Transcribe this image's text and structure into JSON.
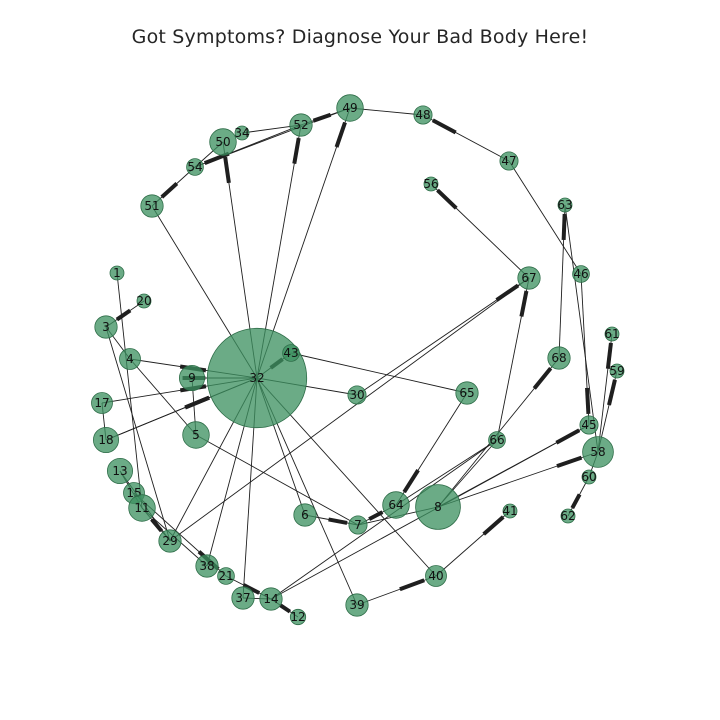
{
  "title": "Got Symptoms? Diagnose Your Bad Body Here!",
  "node_color": "#3c9160",
  "edge_color": "#1f1f1f",
  "nodes": [
    {
      "id": "1",
      "size": 1
    },
    {
      "id": "20",
      "size": 1
    },
    {
      "id": "3",
      "size": 1.6
    },
    {
      "id": "4",
      "size": 1.5
    },
    {
      "id": "9",
      "size": 1.8
    },
    {
      "id": "17",
      "size": 1.5
    },
    {
      "id": "18",
      "size": 1.8
    },
    {
      "id": "5",
      "size": 1.9
    },
    {
      "id": "13",
      "size": 1.8
    },
    {
      "id": "15",
      "size": 1.5
    },
    {
      "id": "11",
      "size": 1.9
    },
    {
      "id": "29",
      "size": 1.6
    },
    {
      "id": "38",
      "size": 1.6
    },
    {
      "id": "21",
      "size": 1.2
    },
    {
      "id": "37",
      "size": 1.6
    },
    {
      "id": "14",
      "size": 1.6
    },
    {
      "id": "12",
      "size": 1.1
    },
    {
      "id": "6",
      "size": 1.6
    },
    {
      "id": "7",
      "size": 1.3
    },
    {
      "id": "39",
      "size": 1.6
    },
    {
      "id": "40",
      "size": 1.5
    },
    {
      "id": "41",
      "size": 1
    },
    {
      "id": "64",
      "size": 1.9
    },
    {
      "id": "8",
      "size": 3.2
    },
    {
      "id": "62",
      "size": 1
    },
    {
      "id": "60",
      "size": 1
    },
    {
      "id": "58",
      "size": 2.2
    },
    {
      "id": "45",
      "size": 1.3
    },
    {
      "id": "59",
      "size": 1
    },
    {
      "id": "61",
      "size": 1
    },
    {
      "id": "66",
      "size": 1.2
    },
    {
      "id": "65",
      "size": 1.6
    },
    {
      "id": "68",
      "size": 1.6
    },
    {
      "id": "46",
      "size": 1.2
    },
    {
      "id": "67",
      "size": 1.6
    },
    {
      "id": "63",
      "size": 1
    },
    {
      "id": "47",
      "size": 1.3
    },
    {
      "id": "56",
      "size": 1
    },
    {
      "id": "48",
      "size": 1.3
    },
    {
      "id": "49",
      "size": 1.9
    },
    {
      "id": "52",
      "size": 1.6
    },
    {
      "id": "34",
      "size": 1
    },
    {
      "id": "50",
      "size": 1.9
    },
    {
      "id": "54",
      "size": 1.2
    },
    {
      "id": "51",
      "size": 1.6
    },
    {
      "id": "32",
      "size": 7.1
    },
    {
      "id": "43",
      "size": 1.2
    },
    {
      "id": "30",
      "size": 1.3
    }
  ],
  "edges": [
    [
      "1",
      "11",
      0
    ],
    [
      "20",
      "3",
      1
    ],
    [
      "3",
      "29",
      0
    ],
    [
      "4",
      "5",
      0
    ],
    [
      "4",
      "32",
      1
    ],
    [
      "3",
      "4",
      0
    ],
    [
      "9",
      "32",
      1
    ],
    [
      "9",
      "5",
      0
    ],
    [
      "17",
      "32",
      1
    ],
    [
      "18",
      "32",
      1
    ],
    [
      "18",
      "32",
      1
    ],
    [
      "17",
      "18",
      0
    ],
    [
      "13",
      "29",
      0
    ],
    [
      "15",
      "21",
      1
    ],
    [
      "11",
      "29",
      1
    ],
    [
      "11",
      "38",
      0
    ],
    [
      "11",
      "13",
      0
    ],
    [
      "29",
      "32",
      0
    ],
    [
      "29",
      "67",
      0
    ],
    [
      "38",
      "32",
      0
    ],
    [
      "37",
      "32",
      0
    ],
    [
      "37",
      "14",
      0
    ],
    [
      "21",
      "14",
      1
    ],
    [
      "14",
      "12",
      1
    ],
    [
      "14",
      "45",
      0
    ],
    [
      "14",
      "66",
      0
    ],
    [
      "5",
      "7",
      0
    ],
    [
      "6",
      "32",
      0
    ],
    [
      "6",
      "7",
      1
    ],
    [
      "7",
      "8",
      0
    ],
    [
      "7",
      "64",
      1
    ],
    [
      "39",
      "32",
      0
    ],
    [
      "39",
      "40",
      1
    ],
    [
      "40",
      "32",
      0
    ],
    [
      "40",
      "41",
      1
    ],
    [
      "32",
      "43",
      1
    ],
    [
      "32",
      "50",
      1
    ],
    [
      "32",
      "49",
      1
    ],
    [
      "32",
      "52",
      1
    ],
    [
      "32",
      "51",
      0
    ],
    [
      "32",
      "30",
      0
    ],
    [
      "30",
      "67",
      1
    ],
    [
      "43",
      "65",
      0
    ],
    [
      "65",
      "64",
      1
    ],
    [
      "8",
      "68",
      1
    ],
    [
      "8",
      "45",
      1
    ],
    [
      "8",
      "58",
      1
    ],
    [
      "8",
      "66",
      0
    ],
    [
      "64",
      "66",
      0
    ],
    [
      "58",
      "60",
      0
    ],
    [
      "60",
      "62",
      1
    ],
    [
      "58",
      "59",
      1
    ],
    [
      "58",
      "61",
      1
    ],
    [
      "58",
      "63",
      0
    ],
    [
      "68",
      "63",
      1
    ],
    [
      "66",
      "67",
      1
    ],
    [
      "67",
      "56",
      1
    ],
    [
      "46",
      "45",
      1
    ],
    [
      "46",
      "47",
      0
    ],
    [
      "47",
      "48",
      1
    ],
    [
      "48",
      "49",
      0
    ],
    [
      "49",
      "52",
      1
    ],
    [
      "52",
      "34",
      0
    ],
    [
      "49",
      "54",
      0
    ],
    [
      "52",
      "54",
      1
    ],
    [
      "50",
      "54",
      0
    ],
    [
      "54",
      "51",
      1
    ]
  ]
}
